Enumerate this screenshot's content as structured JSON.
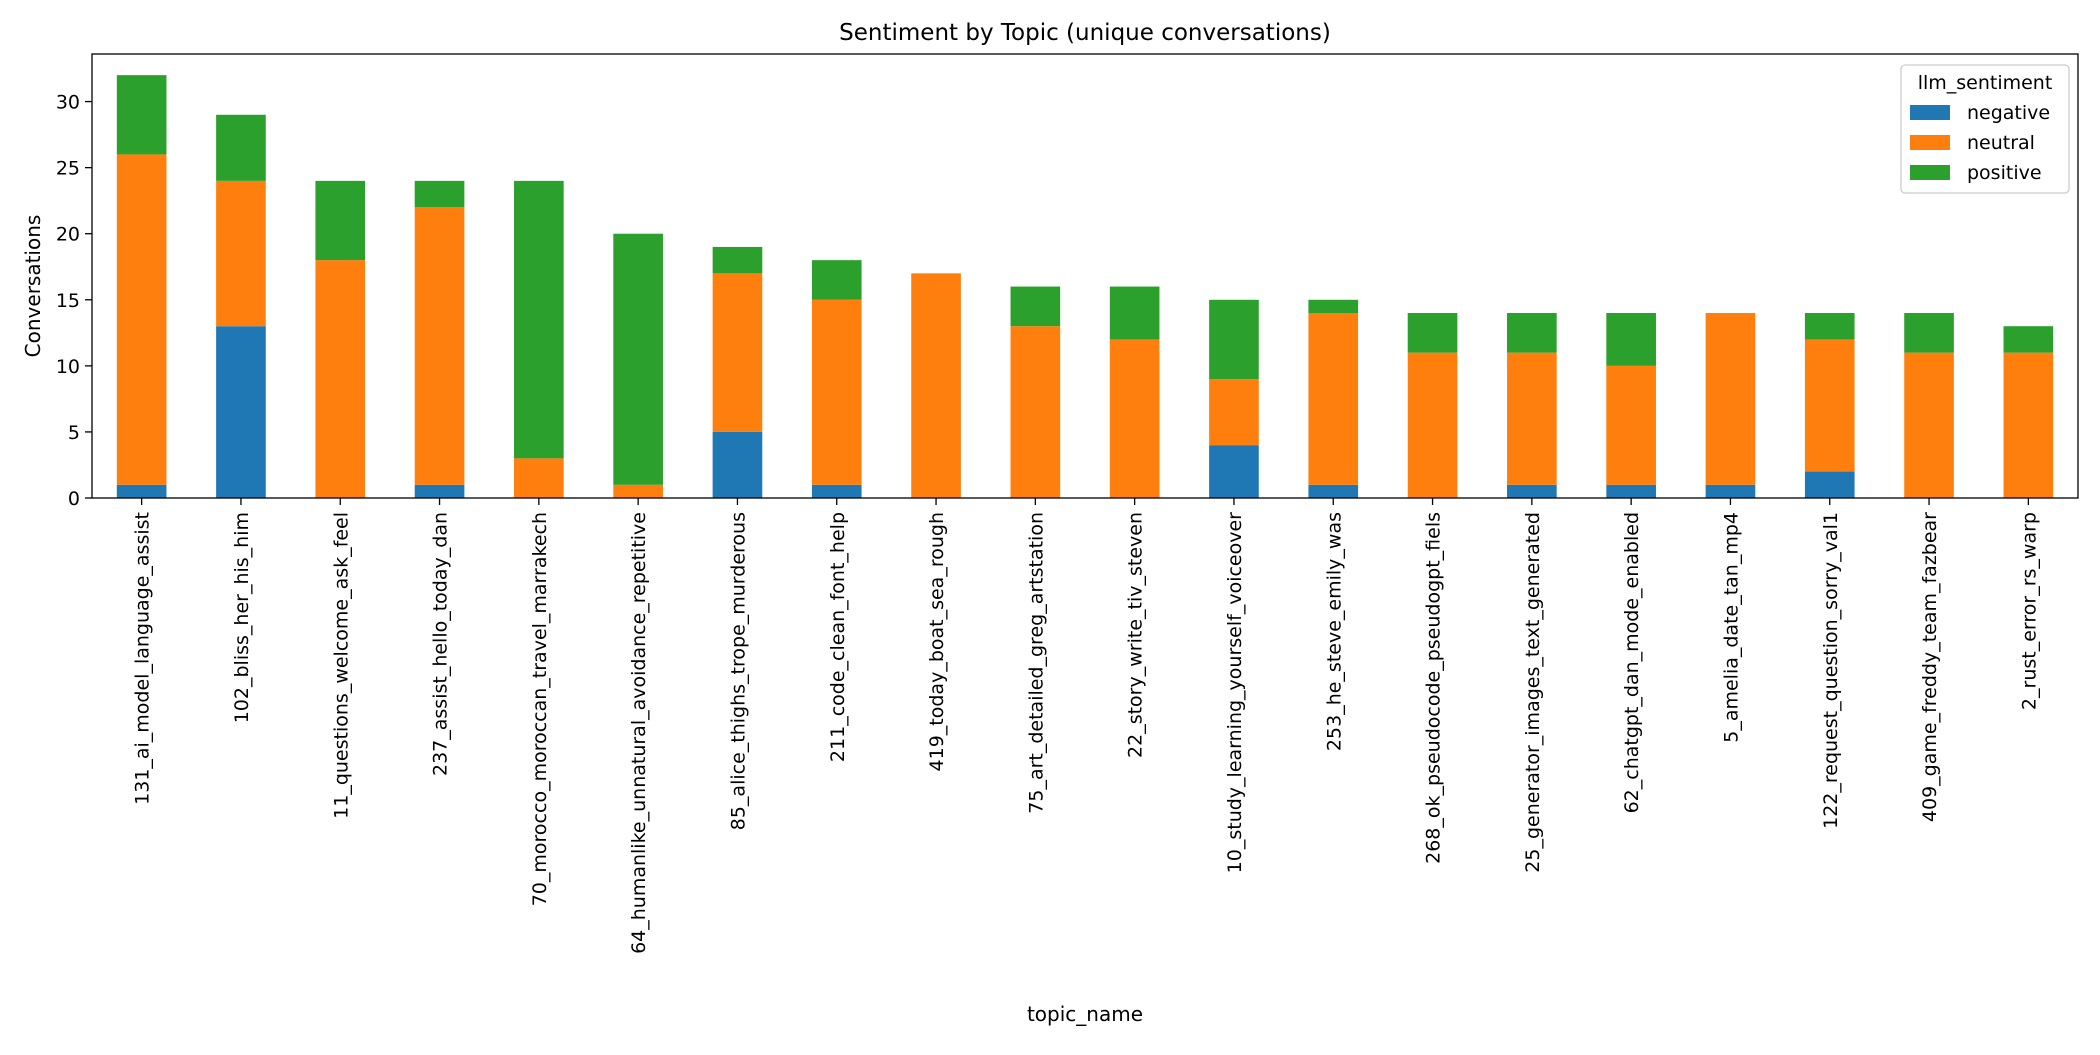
{
  "chart_data": {
    "type": "bar",
    "stacked": true,
    "title": "Sentiment by Topic (unique conversations)",
    "xlabel": "topic_name",
    "ylabel": "Conversations",
    "ylim": [
      0,
      33.6
    ],
    "yticks": [
      0,
      5,
      10,
      15,
      20,
      25,
      30
    ],
    "grid": false,
    "legend": {
      "title": "llm_sentiment",
      "position": "top-right"
    },
    "categories": [
      "131_ai_model_language_assist",
      "102_bliss_her_his_him",
      "11_questions_welcome_ask_feel",
      "237_assist_hello_today_dan",
      "70_morocco_moroccan_travel_marrakech",
      "64_humanlike_unnatural_avoidance_repetitive",
      "85_alice_thighs_trope_murderous",
      "211_code_clean_font_help",
      "419_today_boat_sea_rough",
      "75_art_detailed_greg_artstation",
      "22_story_write_tiv_steven",
      "10_study_learning_yourself_voiceover",
      "253_he_steve_emily_was",
      "268_ok_pseudocode_pseudogpt_fiels",
      "25_generator_images_text_generated",
      "62_chatgpt_dan_mode_enabled",
      "5_amelia_date_tan_mp4",
      "122_request_question_sorry_val1",
      "409_game_freddy_team_fazbear",
      "2_rust_error_rs_warp"
    ],
    "series": [
      {
        "name": "negative",
        "color": "#1f77b4",
        "values": [
          1,
          13,
          0,
          1,
          0,
          0,
          5,
          1,
          0,
          0,
          0,
          4,
          1,
          0,
          1,
          1,
          1,
          2,
          0,
          0
        ]
      },
      {
        "name": "neutral",
        "color": "#ff7f0e",
        "values": [
          25,
          11,
          18,
          21,
          3,
          1,
          12,
          14,
          17,
          13,
          12,
          5,
          13,
          11,
          10,
          9,
          13,
          10,
          11,
          11
        ]
      },
      {
        "name": "positive",
        "color": "#2ca02c",
        "values": [
          6,
          5,
          6,
          2,
          21,
          19,
          2,
          3,
          0,
          3,
          4,
          6,
          1,
          3,
          3,
          4,
          0,
          2,
          3,
          2
        ]
      }
    ]
  }
}
